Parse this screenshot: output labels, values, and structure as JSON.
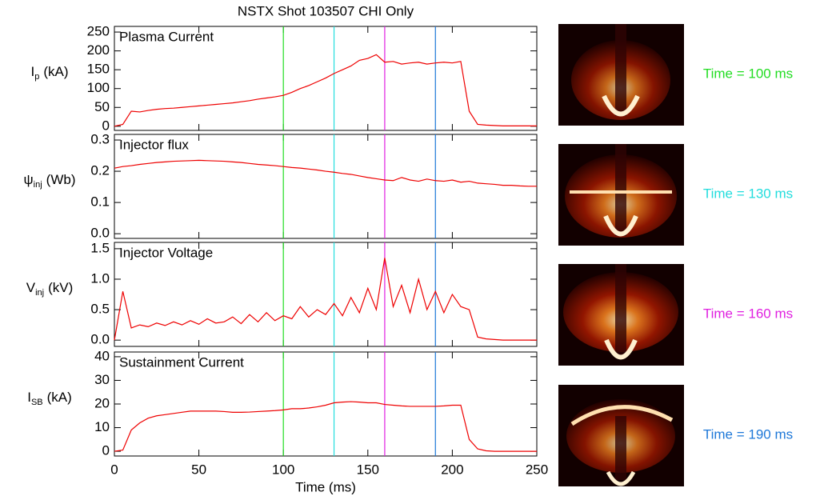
{
  "title": "NSTX Shot 103507 CHI Only",
  "markers": [
    {
      "value": 100,
      "label": "Time = 100 ms",
      "color": "#22dd22"
    },
    {
      "value": 130,
      "label": "Time = 130 ms",
      "color": "#22dddd"
    },
    {
      "value": 160,
      "label": "Time = 160 ms",
      "color": "#e020e0"
    },
    {
      "value": 190,
      "label": "Time = 190 ms",
      "color": "#1e78d8"
    }
  ],
  "chart_data": [
    {
      "type": "line",
      "ylabel": {
        "symbol": "I",
        "sub": "p",
        "unit": "(kA)"
      },
      "x": [
        0,
        5,
        10,
        15,
        20,
        25,
        30,
        35,
        40,
        45,
        50,
        55,
        60,
        65,
        70,
        75,
        80,
        85,
        90,
        95,
        100,
        105,
        110,
        115,
        120,
        125,
        130,
        135,
        140,
        145,
        150,
        155,
        160,
        165,
        170,
        175,
        180,
        185,
        190,
        195,
        200,
        205,
        210,
        215,
        220,
        225,
        230,
        235,
        240,
        245,
        250
      ],
      "series": [
        {
          "name": "Plasma Current",
          "color": "#ee0000",
          "values": [
            0,
            5,
            40,
            38,
            42,
            45,
            47,
            48,
            50,
            52,
            54,
            56,
            58,
            60,
            62,
            65,
            68,
            72,
            75,
            78,
            82,
            90,
            100,
            108,
            118,
            128,
            140,
            150,
            160,
            175,
            180,
            190,
            170,
            172,
            165,
            168,
            170,
            165,
            168,
            170,
            168,
            172,
            40,
            5,
            3,
            2,
            1,
            1,
            1,
            1,
            1
          ]
        }
      ],
      "xlim": [
        0,
        250
      ],
      "ylim": [
        -11,
        265
      ],
      "yticks": [
        0,
        50,
        100,
        150,
        200,
        250
      ]
    },
    {
      "type": "line",
      "ylabel": {
        "symbol": "ψ",
        "sub": "inj",
        "unit": "(Wb)"
      },
      "x": [
        0,
        5,
        10,
        15,
        20,
        25,
        30,
        35,
        40,
        45,
        50,
        55,
        60,
        65,
        70,
        75,
        80,
        85,
        90,
        95,
        100,
        105,
        110,
        115,
        120,
        125,
        130,
        135,
        140,
        145,
        150,
        155,
        160,
        165,
        170,
        175,
        180,
        185,
        190,
        195,
        200,
        205,
        210,
        215,
        220,
        225,
        230,
        235,
        240,
        245,
        250
      ],
      "series": [
        {
          "name": "Injector flux",
          "color": "#ee0000",
          "values": [
            0.21,
            0.215,
            0.218,
            0.222,
            0.225,
            0.228,
            0.23,
            0.232,
            0.233,
            0.234,
            0.235,
            0.234,
            0.233,
            0.232,
            0.23,
            0.228,
            0.225,
            0.222,
            0.22,
            0.218,
            0.215,
            0.212,
            0.21,
            0.207,
            0.204,
            0.2,
            0.197,
            0.193,
            0.19,
            0.185,
            0.18,
            0.176,
            0.172,
            0.17,
            0.18,
            0.172,
            0.168,
            0.175,
            0.17,
            0.168,
            0.172,
            0.165,
            0.168,
            0.162,
            0.16,
            0.158,
            0.155,
            0.155,
            0.153,
            0.152,
            0.152
          ]
        }
      ],
      "xlim": [
        0,
        250
      ],
      "ylim": [
        -0.015,
        0.318
      ],
      "yticks": [
        {
          "value": 0,
          "label": "0.0"
        },
        0.1,
        0.2,
        0.3
      ]
    },
    {
      "type": "line",
      "ylabel": {
        "symbol": "V",
        "sub": "inj",
        "unit": "(kV)"
      },
      "x": [
        0,
        5,
        10,
        15,
        20,
        25,
        30,
        35,
        40,
        45,
        50,
        55,
        60,
        65,
        70,
        75,
        80,
        85,
        90,
        95,
        100,
        105,
        110,
        115,
        120,
        125,
        130,
        135,
        140,
        145,
        150,
        155,
        160,
        165,
        170,
        175,
        180,
        185,
        190,
        195,
        200,
        205,
        210,
        215,
        220,
        225,
        230,
        235,
        240,
        245,
        250
      ],
      "series": [
        {
          "name": "Injector Voltage",
          "color": "#ee0000",
          "values": [
            0.0,
            0.8,
            0.2,
            0.25,
            0.22,
            0.28,
            0.24,
            0.3,
            0.25,
            0.32,
            0.26,
            0.35,
            0.28,
            0.3,
            0.38,
            0.27,
            0.42,
            0.3,
            0.45,
            0.32,
            0.4,
            0.35,
            0.55,
            0.38,
            0.5,
            0.42,
            0.6,
            0.4,
            0.7,
            0.45,
            0.85,
            0.5,
            1.35,
            0.55,
            0.9,
            0.45,
            1.0,
            0.5,
            0.8,
            0.45,
            0.75,
            0.55,
            0.5,
            0.05,
            0.02,
            0.01,
            0.0,
            0.0,
            0.0,
            0.0,
            0.0
          ]
        }
      ],
      "xlim": [
        0,
        250
      ],
      "ylim": [
        -0.103,
        1.6035
      ],
      "yticks": [
        {
          "value": 0,
          "label": "0.0"
        },
        0.5,
        {
          "value": 1,
          "label": "1.0"
        },
        1.5
      ]
    },
    {
      "type": "line",
      "ylabel": {
        "symbol": "I",
        "sub": "SB",
        "unit": "(kA)"
      },
      "xlabel": "Time (ms)",
      "x": [
        0,
        5,
        10,
        15,
        20,
        25,
        30,
        35,
        40,
        45,
        50,
        55,
        60,
        65,
        70,
        75,
        80,
        85,
        90,
        95,
        100,
        105,
        110,
        115,
        120,
        125,
        130,
        135,
        140,
        145,
        150,
        155,
        160,
        165,
        170,
        175,
        180,
        185,
        190,
        195,
        200,
        205,
        210,
        215,
        220,
        225,
        230,
        235,
        240,
        245,
        250
      ],
      "series": [
        {
          "name": "Sustainment Current",
          "color": "#ee0000",
          "values": [
            0,
            0.5,
            9,
            12,
            14,
            15,
            15.5,
            16,
            16.5,
            17,
            17,
            17,
            17,
            16.8,
            16.5,
            16.5,
            16.6,
            16.8,
            17,
            17.2,
            17.5,
            18,
            18,
            18.3,
            18.8,
            19.5,
            20.5,
            20.8,
            21,
            20.8,
            20.5,
            20.5,
            19.8,
            19.5,
            19.2,
            19,
            19,
            19,
            19,
            19.2,
            19.5,
            19.5,
            5,
            1,
            0.2,
            0,
            0,
            0,
            0,
            0,
            0
          ]
        }
      ],
      "xlim": [
        0,
        250
      ],
      "ylim": [
        -2,
        42
      ],
      "yticks": [
        0,
        10,
        20,
        30,
        40
      ],
      "xticks": [
        0,
        50,
        100,
        150,
        200,
        250
      ]
    }
  ]
}
